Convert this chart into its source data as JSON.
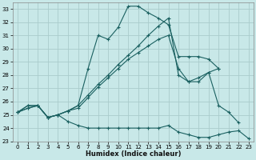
{
  "xlabel": "Humidex (Indice chaleur)",
  "xlim": [
    -0.5,
    23.5
  ],
  "ylim": [
    23,
    33.5
  ],
  "xticks": [
    0,
    1,
    2,
    3,
    4,
    5,
    6,
    7,
    8,
    9,
    10,
    11,
    12,
    13,
    14,
    15,
    16,
    17,
    18,
    19,
    20,
    21,
    22,
    23
  ],
  "yticks": [
    23,
    24,
    25,
    26,
    27,
    28,
    29,
    30,
    31,
    32,
    33
  ],
  "bg_color": "#c8e8e8",
  "line_color": "#1a6060",
  "grid_color": "#aacccc",
  "lines": [
    {
      "x": [
        0,
        1,
        2,
        3,
        4,
        5,
        6,
        7,
        8,
        9,
        10,
        11,
        12,
        13,
        14,
        15,
        16,
        17,
        18,
        19,
        20
      ],
      "y": [
        25.2,
        25.7,
        25.7,
        24.8,
        25.0,
        25.3,
        25.7,
        28.5,
        31.0,
        30.7,
        31.6,
        33.2,
        33.2,
        32.7,
        32.3,
        31.8,
        29.4,
        29.4,
        29.4,
        29.2,
        28.5
      ]
    },
    {
      "x": [
        0,
        1,
        2,
        3,
        4,
        5,
        6,
        7,
        8,
        9,
        10,
        11,
        12,
        13,
        14,
        15,
        16,
        17,
        18,
        19,
        20
      ],
      "y": [
        25.2,
        25.5,
        25.7,
        24.8,
        25.0,
        25.3,
        25.7,
        26.5,
        27.3,
        28.0,
        28.8,
        29.5,
        30.2,
        31.0,
        31.7,
        32.3,
        28.0,
        27.5,
        27.8,
        28.2,
        28.5
      ]
    },
    {
      "x": [
        0,
        1,
        2,
        3,
        4,
        5,
        6,
        7,
        8,
        9,
        10,
        11,
        12,
        13,
        14,
        15,
        16,
        17,
        18,
        19,
        20,
        21,
        22,
        23
      ],
      "y": [
        25.2,
        25.7,
        25.7,
        24.8,
        25.0,
        24.5,
        24.2,
        24.0,
        24.0,
        24.0,
        24.0,
        24.0,
        24.0,
        24.0,
        24.0,
        24.2,
        23.7,
        23.5,
        23.3,
        23.3,
        23.5,
        23.7,
        23.8,
        23.2
      ]
    },
    {
      "x": [
        0,
        1,
        2,
        3,
        4,
        5,
        6,
        7,
        8,
        9,
        10,
        11,
        12,
        13,
        14,
        15,
        16,
        17,
        18,
        19,
        20,
        21,
        22
      ],
      "y": [
        25.2,
        25.5,
        25.7,
        24.8,
        25.0,
        25.3,
        25.5,
        26.3,
        27.1,
        27.8,
        28.5,
        29.2,
        29.7,
        30.2,
        30.7,
        31.0,
        28.5,
        27.5,
        27.5,
        28.2,
        25.7,
        25.2,
        24.4
      ]
    }
  ]
}
